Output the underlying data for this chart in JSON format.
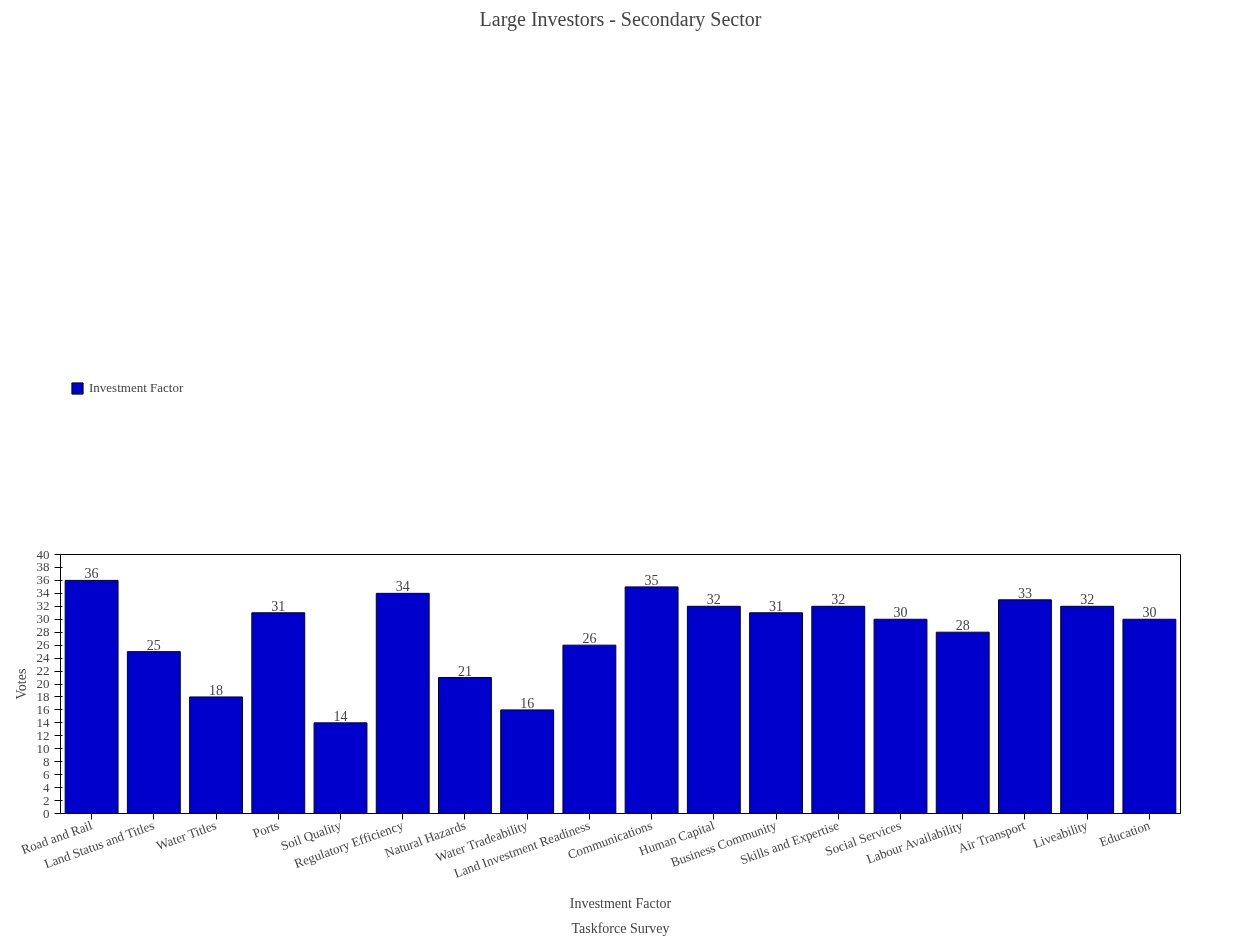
{
  "chart_data": {
    "type": "bar",
    "title": "Large Investors - Secondary Sector",
    "xlabel": "Investment Factor",
    "ylabel": "Votes",
    "annotations": [
      "Taskforce Survey"
    ],
    "categories": [
      "Road and Rail",
      "Land Status and Titles",
      "Water Titles",
      "Ports",
      "Soil Quality",
      "Regulatory Efficiency",
      "Natural Hazards",
      "Water Tradeability",
      "Land Investment Readiness",
      "Communications",
      "Human Capital",
      "Business Community",
      "Skills and Expertise",
      "Social Services",
      "Labour Availability",
      "Air Transport",
      "Liveability",
      "Education"
    ],
    "series": [
      {
        "name": "Investment Factor",
        "color": "#0000cc",
        "values": [
          36,
          25,
          18,
          31,
          14,
          34,
          21,
          16,
          26,
          35,
          32,
          31,
          32,
          30,
          28,
          33,
          32,
          30
        ]
      }
    ],
    "ylim": [
      0,
      40
    ],
    "yticks": [
      0,
      2,
      4,
      6,
      8,
      10,
      12,
      14,
      16,
      18,
      20,
      22,
      24,
      26,
      28,
      30,
      32,
      34,
      36,
      38,
      40
    ],
    "grid": false,
    "legend": "top left",
    "data_labels": true
  }
}
